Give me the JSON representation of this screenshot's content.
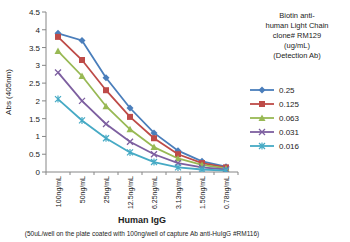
{
  "chart_data": {
    "type": "line",
    "ylabel": "Abs (405nm)",
    "xlabel": "Human IgG",
    "xlabel_note": "(50uL/well on the plate coated with 100ng/well of capture Ab anti-HuIgG #RM116)",
    "legend_title": [
      "Biotin anti-",
      "human Light Chain",
      "clone# RM129",
      "(ug/mL)",
      "(Detection Ab)"
    ],
    "categories": [
      "100ng/mL",
      "50ng/mL",
      "25ng/mL",
      "12.5ng/mL",
      "6.25ng/mL",
      "3.13ng/mL",
      "1.56ng/mL",
      "0.78ng/mL"
    ],
    "series": [
      {
        "name": "0.25",
        "color": "#4a7ebb",
        "marker": "diamond",
        "values": [
          3.9,
          3.7,
          2.65,
          1.8,
          1.1,
          0.6,
          0.3,
          0.15
        ]
      },
      {
        "name": "0.125",
        "color": "#be4b48",
        "marker": "square",
        "values": [
          3.8,
          3.15,
          2.3,
          1.55,
          0.95,
          0.5,
          0.25,
          0.13
        ]
      },
      {
        "name": "0.063",
        "color": "#98b954",
        "marker": "triangle",
        "values": [
          3.4,
          2.7,
          1.85,
          1.2,
          0.7,
          0.38,
          0.2,
          0.1
        ]
      },
      {
        "name": "0.031",
        "color": "#7d5fa0",
        "marker": "x",
        "values": [
          2.8,
          2.0,
          1.35,
          0.85,
          0.5,
          0.25,
          0.13,
          0.07
        ]
      },
      {
        "name": "0.016",
        "color": "#46aac5",
        "marker": "star",
        "values": [
          2.05,
          1.45,
          0.95,
          0.55,
          0.28,
          0.13,
          0.07,
          0.04
        ]
      }
    ],
    "ylim": [
      0,
      4.5
    ],
    "yticks": [
      0,
      0.5,
      1,
      1.5,
      2,
      2.5,
      3,
      3.5,
      4,
      4.5
    ],
    "grid": false,
    "legend": "right"
  }
}
